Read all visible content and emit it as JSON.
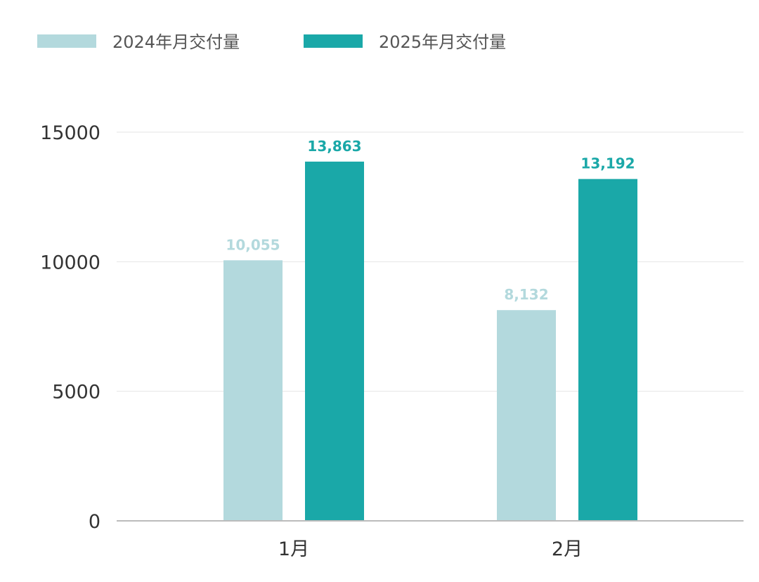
{
  "chart_data": {
    "type": "bar",
    "categories": [
      "1月",
      "2月"
    ],
    "series": [
      {
        "name": "2024年月交付量",
        "values": [
          10055,
          8132
        ],
        "labels": [
          "10,055",
          "8,132"
        ],
        "color": "#b3d9dd"
      },
      {
        "name": "2025年月交付量",
        "values": [
          13863,
          13192
        ],
        "labels": [
          "13,863",
          "13,192"
        ],
        "color": "#1aa8a8"
      }
    ],
    "y_ticks": [
      "0",
      "5000",
      "10000",
      "15000"
    ],
    "ylim": [
      0,
      15000
    ],
    "grid": true,
    "legend": "top-left"
  }
}
